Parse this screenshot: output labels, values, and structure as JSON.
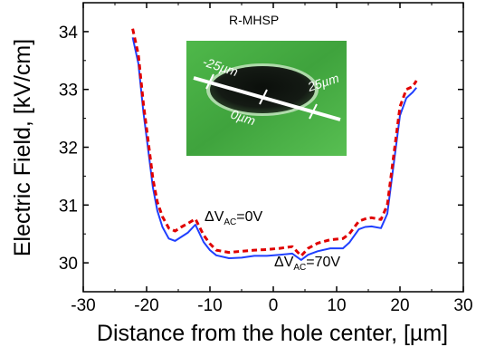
{
  "chart_data": {
    "type": "line",
    "xlabel": "Distance from the hole center, [µm]",
    "ylabel": "Electric Field, [kV/cm]",
    "xlim": [
      -30,
      30
    ],
    "ylim": [
      29.5,
      34.5
    ],
    "x_ticks": [
      "-30",
      "-20",
      "-10",
      "0",
      "10",
      "20",
      "30"
    ],
    "y_ticks": [
      "30",
      "31",
      "32",
      "33",
      "34"
    ],
    "grid": false,
    "series": [
      {
        "name": "ΔV_AC=70V",
        "style": "solid",
        "color": "#1f3fff",
        "x": [
          -22.2,
          -21.3,
          -20.5,
          -19.8,
          -19.0,
          -18.3,
          -17.5,
          -16.5,
          -15.5,
          -14.5,
          -13.5,
          -12.3,
          -11.0,
          -10.0,
          -9.0,
          -7.0,
          -5.0,
          -3.0,
          -1.0,
          1.0,
          3.0,
          4.4,
          5.5,
          7.0,
          9.0,
          11.0,
          12.0,
          13.5,
          14.5,
          15.5,
          17.0,
          18.0,
          19.0,
          20.0,
          21.0,
          22.0,
          22.6
        ],
        "y": [
          33.9,
          33.45,
          32.6,
          32.0,
          31.3,
          30.9,
          30.62,
          30.42,
          30.38,
          30.45,
          30.52,
          30.66,
          30.36,
          30.22,
          30.13,
          30.08,
          30.09,
          30.12,
          30.12,
          30.14,
          30.16,
          30.05,
          30.14,
          30.2,
          30.25,
          30.25,
          30.35,
          30.58,
          30.62,
          30.63,
          30.6,
          30.85,
          31.7,
          32.55,
          32.85,
          32.95,
          33.03
        ]
      },
      {
        "name": "ΔV_AC=0V",
        "style": "dashed",
        "color": "#e00000",
        "x": [
          -22.2,
          -21.3,
          -20.5,
          -19.8,
          -19.0,
          -18.3,
          -17.5,
          -16.5,
          -15.5,
          -14.5,
          -13.5,
          -12.3,
          -11.0,
          -10.0,
          -9.0,
          -7.0,
          -5.0,
          -3.0,
          -1.0,
          1.0,
          3.0,
          4.4,
          5.5,
          7.0,
          9.0,
          11.0,
          12.0,
          13.5,
          14.5,
          15.5,
          17.0,
          18.0,
          19.0,
          20.0,
          21.0,
          22.0,
          22.6
        ],
        "y": [
          34.05,
          33.6,
          32.75,
          32.15,
          31.45,
          31.05,
          30.8,
          30.6,
          30.55,
          30.62,
          30.68,
          30.76,
          30.48,
          30.33,
          30.22,
          30.18,
          30.2,
          30.22,
          30.23,
          30.25,
          30.28,
          30.12,
          30.25,
          30.34,
          30.4,
          30.42,
          30.5,
          30.72,
          30.76,
          30.78,
          30.75,
          31.0,
          31.85,
          32.7,
          33.0,
          33.05,
          33.15
        ]
      }
    ],
    "annotations": {
      "inset_title": "R-MHSP",
      "label_0v_main": "ΔV",
      "label_0v_sub": "AC",
      "label_0v_rest": "=0V",
      "label_70v_main": "ΔV",
      "label_70v_sub": "AC",
      "label_70v_rest": "=70V",
      "inset_left": "-25µm",
      "inset_center": "0µm",
      "inset_right": "25µm"
    }
  }
}
